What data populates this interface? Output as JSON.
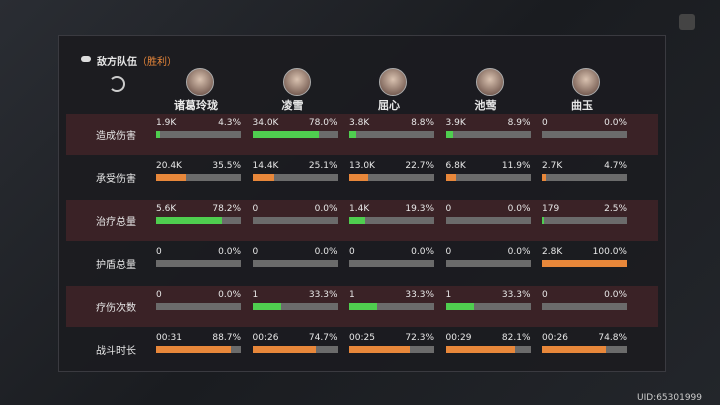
{
  "header": {
    "title": "敌方队伍",
    "result": "（胜利）"
  },
  "characters": [
    "诸葛玲珑",
    "凌雪",
    "屈心",
    "池莺",
    "曲玉"
  ],
  "rows": [
    {
      "label": "造成伤害",
      "color": "#4fce4f",
      "cells": [
        {
          "value": "1.9K",
          "percent": 4.3,
          "percent_label": "4.3%"
        },
        {
          "value": "34.0K",
          "percent": 78.0,
          "percent_label": "78.0%"
        },
        {
          "value": "3.8K",
          "percent": 8.8,
          "percent_label": "8.8%"
        },
        {
          "value": "3.9K",
          "percent": 8.9,
          "percent_label": "8.9%"
        },
        {
          "value": "0",
          "percent": 0.0,
          "percent_label": "0.0%"
        }
      ]
    },
    {
      "label": "承受伤害",
      "color": "#e8873a",
      "cells": [
        {
          "value": "20.4K",
          "percent": 35.5,
          "percent_label": "35.5%"
        },
        {
          "value": "14.4K",
          "percent": 25.1,
          "percent_label": "25.1%"
        },
        {
          "value": "13.0K",
          "percent": 22.7,
          "percent_label": "22.7%"
        },
        {
          "value": "6.8K",
          "percent": 11.9,
          "percent_label": "11.9%"
        },
        {
          "value": "2.7K",
          "percent": 4.7,
          "percent_label": "4.7%"
        }
      ]
    },
    {
      "label": "治疗总量",
      "color": "#4fce4f",
      "cells": [
        {
          "value": "5.6K",
          "percent": 78.2,
          "percent_label": "78.2%"
        },
        {
          "value": "0",
          "percent": 0.0,
          "percent_label": "0.0%"
        },
        {
          "value": "1.4K",
          "percent": 19.3,
          "percent_label": "19.3%"
        },
        {
          "value": "0",
          "percent": 0.0,
          "percent_label": "0.0%"
        },
        {
          "value": "179",
          "percent": 2.5,
          "percent_label": "2.5%"
        }
      ]
    },
    {
      "label": "护盾总量",
      "color": "#e8873a",
      "cells": [
        {
          "value": "0",
          "percent": 0.0,
          "percent_label": "0.0%"
        },
        {
          "value": "0",
          "percent": 0.0,
          "percent_label": "0.0%"
        },
        {
          "value": "0",
          "percent": 0.0,
          "percent_label": "0.0%"
        },
        {
          "value": "0",
          "percent": 0.0,
          "percent_label": "0.0%"
        },
        {
          "value": "2.8K",
          "percent": 100.0,
          "percent_label": "100.0%"
        }
      ]
    },
    {
      "label": "疗伤次数",
      "color": "#4fce4f",
      "cells": [
        {
          "value": "0",
          "percent": 0.0,
          "percent_label": "0.0%"
        },
        {
          "value": "1",
          "percent": 33.3,
          "percent_label": "33.3%"
        },
        {
          "value": "1",
          "percent": 33.3,
          "percent_label": "33.3%"
        },
        {
          "value": "1",
          "percent": 33.3,
          "percent_label": "33.3%"
        },
        {
          "value": "0",
          "percent": 0.0,
          "percent_label": "0.0%"
        }
      ]
    },
    {
      "label": "战斗时长",
      "color": "#e8873a",
      "cells": [
        {
          "value": "00:31",
          "percent": 88.7,
          "percent_label": "88.7%"
        },
        {
          "value": "00:26",
          "percent": 74.7,
          "percent_label": "74.7%"
        },
        {
          "value": "00:25",
          "percent": 72.3,
          "percent_label": "72.3%"
        },
        {
          "value": "00:29",
          "percent": 82.1,
          "percent_label": "82.1%"
        },
        {
          "value": "00:26",
          "percent": 74.8,
          "percent_label": "74.8%"
        }
      ]
    }
  ],
  "uid": "UID:65301999"
}
